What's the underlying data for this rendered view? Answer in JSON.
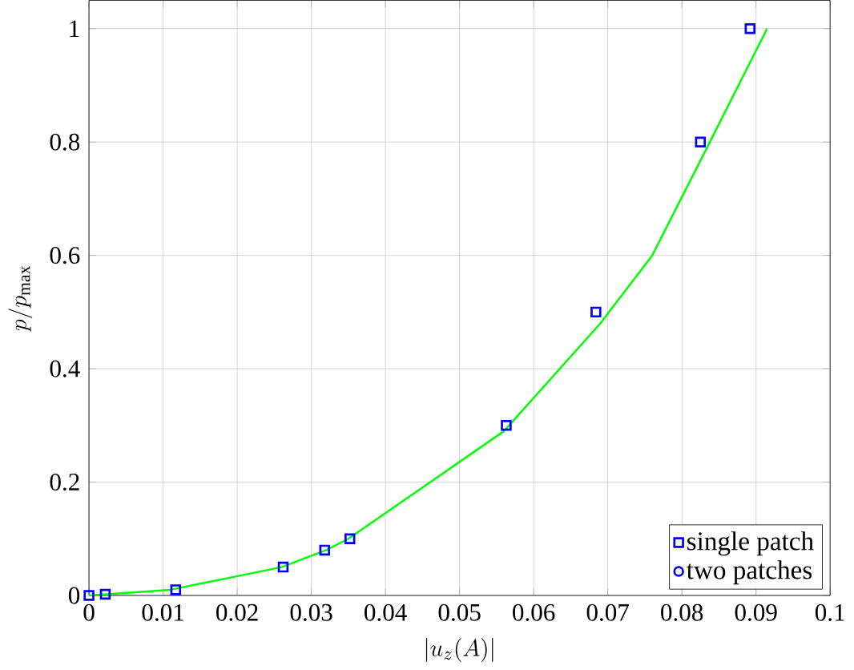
{
  "chart_data": {
    "type": "line",
    "xlabel": "|u_z(A)|",
    "ylabel": "p/p_{\\max}",
    "xlim": [
      0,
      0.1
    ],
    "ylim": [
      0,
      1.05
    ],
    "xticks": [
      0,
      0.01,
      0.02,
      0.03,
      0.04,
      0.05,
      0.06,
      0.07,
      0.08,
      0.09,
      0.1
    ],
    "yticks": [
      0,
      0.2,
      0.4,
      0.6,
      0.8,
      1
    ],
    "grid": true,
    "legend": "bottom right",
    "series": [
      {
        "color": "#00ff00",
        "marker": "none",
        "line_style": "solid",
        "x": [
          0,
          0.011,
          0.026,
          0.032,
          0.035,
          0.056,
          0.069,
          0.076,
          0.083,
          0.0915
        ],
        "values": [
          0,
          0.01,
          0.05,
          0.08,
          0.1,
          0.29,
          0.48,
          0.6,
          0.78,
          1.0
        ]
      },
      {
        "type": "scatter",
        "name": "single patch",
        "color": "#0000ff",
        "marker": "square",
        "x": [
          0,
          0.0022,
          0.0117,
          0.0262,
          0.0318,
          0.0352,
          0.0563,
          0.0684,
          0.0825,
          0.0892
        ],
        "values": [
          0,
          0.002,
          0.01,
          0.05,
          0.08,
          0.1,
          0.3,
          0.5,
          0.8,
          1
        ]
      },
      {
        "type": "scatter",
        "name": "two patches",
        "color": "#0000ff",
        "marker": "circle",
        "values": [
          null,
          null,
          null,
          null,
          null,
          null,
          null,
          null,
          null,
          null
        ]
      }
    ]
  }
}
